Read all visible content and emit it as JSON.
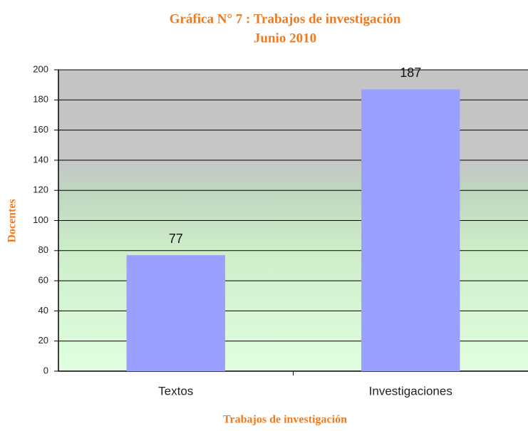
{
  "chart_data": {
    "type": "bar",
    "title": "Gráfica N° 7 : Trabajos de investigación",
    "subtitle": "Junio 2010",
    "x_label": "Trabajos de investigación",
    "y_label": "Docentes",
    "categories": [
      "Textos",
      "Investigaciones"
    ],
    "values": [
      77,
      187
    ],
    "color": "#9aa0ff",
    "ylim": [
      0,
      200
    ],
    "yticks": [
      0,
      20,
      40,
      60,
      80,
      100,
      120,
      140,
      160,
      180,
      200
    ],
    "grid": true
  }
}
